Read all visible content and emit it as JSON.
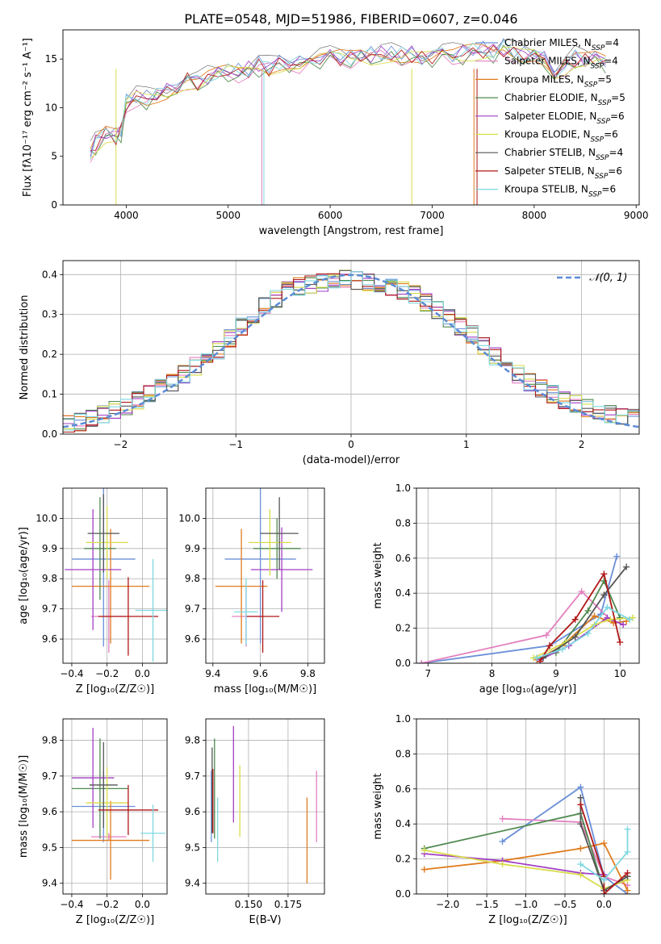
{
  "figure_title": "PLATE=0548, MJD=51986, FIBERID=0607, z=0.046",
  "series_names": [
    "Chabrier MILES",
    "Salpeter MILES",
    "Kroupa MILES",
    "Chabrier ELODIE",
    "Salpeter ELODIE",
    "Kroupa ELODIE",
    "Chabrier STELIB",
    "Salpeter STELIB",
    "Kroupa STELIB"
  ],
  "legend_nssp": [
    "4",
    "4",
    "5",
    "5",
    "6",
    "6",
    "4",
    "6",
    "6"
  ],
  "series_colors": [
    "#6a8fd8",
    "#e37fbf",
    "#e07b1d",
    "#4f8a4f",
    "#a23fc4",
    "#d8dc4a",
    "#555555",
    "#b01717",
    "#7fd8e0"
  ],
  "chart_data": [
    {
      "type": "line",
      "title": "PLATE=0548, MJD=51986, FIBERID=0607, z=0.046",
      "xlabel": "wavelength [Angstrom, rest frame]",
      "ylabel": "Flux [fλ10⁻¹⁷ erg cm⁻² s⁻¹ A⁻¹]",
      "xlim": [
        3380,
        9030
      ],
      "ylim": [
        0,
        18
      ],
      "xticks": [
        "4000",
        "5000",
        "6000",
        "7000",
        "8000",
        "9000"
      ],
      "yticks": [
        "0",
        "5",
        "10",
        "15"
      ],
      "legend": "upper-right",
      "x": [
        3650,
        3700,
        3800,
        3900,
        3950,
        4000,
        4100,
        4200,
        4300,
        4400,
        4500,
        4600,
        4700,
        4800,
        4900,
        5000,
        5100,
        5200,
        5300,
        5400,
        5500,
        5600,
        5700,
        5800,
        5900,
        6000,
        6100,
        6200,
        6300,
        6400,
        6500,
        6600,
        6700,
        6800,
        6900,
        7000,
        7100,
        7200,
        7300,
        7400,
        7500,
        7600,
        7700,
        7800,
        7900,
        8000,
        8100,
        8200,
        8300,
        8400,
        8500,
        8600,
        8700
      ],
      "y": [
        5.3,
        6.2,
        7.2,
        7.0,
        7.5,
        10.3,
        11.0,
        10.8,
        11.2,
        11.5,
        12.3,
        12.8,
        12.5,
        13.0,
        13.3,
        13.6,
        13.5,
        13.8,
        14.2,
        14.0,
        14.5,
        14.7,
        14.4,
        14.8,
        15.0,
        15.0,
        15.1,
        15.0,
        15.3,
        15.2,
        15.4,
        15.3,
        15.3,
        15.4,
        15.0,
        15.2,
        15.5,
        15.3,
        15.5,
        15.7,
        15.8,
        15.6,
        16.0,
        15.6,
        15.3,
        15.5,
        14.8,
        13.5,
        14.2,
        15.0,
        14.8,
        14.9,
        14.6
      ]
    },
    {
      "type": "bar",
      "xlabel": "(data-model)/error",
      "ylabel": "Normed distribution",
      "xlim": [
        -2.5,
        2.5
      ],
      "ylim": [
        0,
        0.435
      ],
      "xticks": [
        "−2",
        "−1",
        "0",
        "1",
        "2"
      ],
      "yticks": [
        "0.0",
        "0.1",
        "0.2",
        "0.3",
        "0.4"
      ],
      "legend": "upper-right",
      "reference_curve": "𝒩(0, 1)",
      "bin_width": 0.1,
      "hist_base": [
        0.025,
        0.03,
        0.04,
        0.05,
        0.06,
        0.07,
        0.085,
        0.1,
        0.115,
        0.13,
        0.15,
        0.17,
        0.19,
        0.21,
        0.24,
        0.27,
        0.3,
        0.32,
        0.34,
        0.36,
        0.37,
        0.375,
        0.38,
        0.385,
        0.39,
        0.385,
        0.38,
        0.375,
        0.37,
        0.36,
        0.35,
        0.33,
        0.31,
        0.29,
        0.27,
        0.25,
        0.22,
        0.195,
        0.17,
        0.15,
        0.13,
        0.115,
        0.1,
        0.085,
        0.075,
        0.065,
        0.06,
        0.05,
        0.045,
        0.04
      ]
    },
    {
      "type": "scatter",
      "xlabel": "Z [log₁₀(Z/Z☉)]",
      "ylabel": "age  [log₁₀(age/yr)]",
      "xlim": [
        -0.45,
        0.14
      ],
      "ylim": [
        9.52,
        10.1
      ],
      "xticks": [
        "−0.4",
        "−0.2",
        "0.0"
      ],
      "yticks": [
        "9.6",
        "9.7",
        "9.8",
        "9.9",
        "10.0"
      ],
      "points": [
        {
          "x": -0.22,
          "y": 9.865,
          "xerr": 0.18,
          "yerr": 0.29
        },
        {
          "x": -0.19,
          "y": 9.675,
          "xerr": 0.1,
          "yerr": 0.12
        },
        {
          "x": -0.18,
          "y": 9.775,
          "xerr": 0.22,
          "yerr": 0.19
        },
        {
          "x": -0.24,
          "y": 9.9,
          "xerr": 0.09,
          "yerr": 0.17
        },
        {
          "x": -0.28,
          "y": 9.83,
          "xerr": 0.16,
          "yerr": 0.2
        },
        {
          "x": -0.2,
          "y": 9.92,
          "xerr": 0.12,
          "yerr": 0.12
        },
        {
          "x": -0.22,
          "y": 9.95,
          "xerr": 0.09,
          "yerr": 0.13
        },
        {
          "x": -0.08,
          "y": 9.675,
          "xerr": 0.17,
          "yerr": 0.13
        },
        {
          "x": 0.06,
          "y": 9.695,
          "xerr": 0.1,
          "yerr": 0.17
        }
      ]
    },
    {
      "type": "scatter",
      "xlabel": "mass [log₁₀(M/M☉)]",
      "xlim": [
        9.37,
        9.87
      ],
      "ylim": [
        9.52,
        10.1
      ],
      "xticks": [
        "9.4",
        "9.6",
        "9.8"
      ],
      "yticks": [
        "9.6",
        "9.7",
        "9.8",
        "9.9",
        "10.0"
      ],
      "points": [
        {
          "x": 9.6,
          "y": 9.865,
          "xerr": 0.15,
          "yerr": 0.28
        },
        {
          "x": 9.54,
          "y": 9.675,
          "xerr": 0.06,
          "yerr": 0.1
        },
        {
          "x": 9.52,
          "y": 9.775,
          "xerr": 0.11,
          "yerr": 0.19
        },
        {
          "x": 9.67,
          "y": 9.9,
          "xerr": 0.1,
          "yerr": 0.1
        },
        {
          "x": 9.69,
          "y": 9.83,
          "xerr": 0.13,
          "yerr": 0.14
        },
        {
          "x": 9.64,
          "y": 9.92,
          "xerr": 0.09,
          "yerr": 0.11
        },
        {
          "x": 9.68,
          "y": 9.95,
          "xerr": 0.08,
          "yerr": 0.12
        },
        {
          "x": 9.61,
          "y": 9.675,
          "xerr": 0.07,
          "yerr": 0.12
        },
        {
          "x": 9.54,
          "y": 9.69,
          "xerr": 0.05,
          "yerr": 0.11
        }
      ]
    },
    {
      "type": "line",
      "xlabel": "age  [log₁₀(age/yr)]",
      "ylabel": "mass weight",
      "xlim": [
        6.82,
        10.3
      ],
      "ylim": [
        0,
        1.0
      ],
      "xticks": [
        "7",
        "8",
        "9",
        "10"
      ],
      "yticks": [
        "0.0",
        "0.2",
        "0.4",
        "0.6",
        "0.8",
        "1.0"
      ],
      "series_points": [
        {
          "x": [
            6.9,
            8.9,
            9.7,
            9.95
          ],
          "y": [
            0.0,
            0.1,
            0.28,
            0.61
          ]
        },
        {
          "x": [
            6.9,
            8.85,
            9.4,
            9.9
          ],
          "y": [
            0.0,
            0.16,
            0.41,
            0.23
          ]
        },
        {
          "x": [
            8.7,
            9.1,
            9.6,
            9.9,
            10.1
          ],
          "y": [
            0.02,
            0.1,
            0.27,
            0.23,
            0.24
          ]
        },
        {
          "x": [
            8.7,
            9.0,
            9.5,
            9.75,
            10.0
          ],
          "y": [
            0.03,
            0.06,
            0.3,
            0.47,
            0.26
          ]
        },
        {
          "x": [
            8.75,
            9.2,
            9.8,
            10.05
          ],
          "y": [
            0.02,
            0.1,
            0.26,
            0.22
          ]
        },
        {
          "x": [
            8.65,
            9.15,
            9.6,
            9.85,
            10.2
          ],
          "y": [
            0.03,
            0.12,
            0.22,
            0.25,
            0.26
          ]
        },
        {
          "x": [
            8.8,
            9.3,
            9.75,
            10.1
          ],
          "y": [
            0.03,
            0.15,
            0.39,
            0.55
          ]
        },
        {
          "x": [
            8.75,
            8.9,
            9.3,
            9.75,
            10.0
          ],
          "y": [
            0.01,
            0.1,
            0.25,
            0.51,
            0.12
          ]
        },
        {
          "x": [
            8.7,
            9.1,
            9.5,
            9.8,
            10.15
          ],
          "y": [
            0.03,
            0.08,
            0.17,
            0.32,
            0.25
          ]
        }
      ]
    },
    {
      "type": "scatter",
      "xlabel": "Z [log₁₀(Z/Z☉)]",
      "ylabel": "mass [log₁₀(M/M☉)]",
      "xlim": [
        -0.45,
        0.14
      ],
      "ylim": [
        9.37,
        9.86
      ],
      "xticks": [
        "−0.4",
        "−0.2",
        "0.0"
      ],
      "yticks": [
        "9.4",
        "9.5",
        "9.6",
        "9.7",
        "9.8"
      ],
      "points": [
        {
          "x": -0.22,
          "y": 9.615,
          "xerr": 0.18,
          "yerr": 0.1
        },
        {
          "x": -0.19,
          "y": 9.53,
          "xerr": 0.1,
          "yerr": 0.01
        },
        {
          "x": -0.18,
          "y": 9.52,
          "xerr": 0.22,
          "yerr": 0.11
        },
        {
          "x": -0.24,
          "y": 9.665,
          "xerr": 0.16,
          "yerr": 0.14
        },
        {
          "x": -0.28,
          "y": 9.695,
          "xerr": 0.12,
          "yerr": 0.14
        },
        {
          "x": -0.2,
          "y": 9.625,
          "xerr": 0.12,
          "yerr": 0.1
        },
        {
          "x": -0.22,
          "y": 9.675,
          "xerr": 0.08,
          "yerr": 0.12
        },
        {
          "x": -0.08,
          "y": 9.605,
          "xerr": 0.17,
          "yerr": 0.07
        },
        {
          "x": 0.06,
          "y": 9.54,
          "xerr": 0.07,
          "yerr": 0.08
        }
      ]
    },
    {
      "type": "scatter",
      "xlabel": "E(B-V)",
      "xlim": [
        0.123,
        0.198
      ],
      "ylim": [
        9.37,
        9.86
      ],
      "xticks": [
        "0.150",
        "0.175"
      ],
      "yticks": [
        "9.4",
        "9.5",
        "9.6",
        "9.7",
        "9.8"
      ],
      "points": [
        {
          "x": 0.1265,
          "y": 9.615,
          "yerr": 0.1
        },
        {
          "x": 0.193,
          "y": 9.615,
          "yerr": 0.1
        },
        {
          "x": 0.187,
          "y": 9.52,
          "yerr": 0.12
        },
        {
          "x": 0.1285,
          "y": 9.665,
          "yerr": 0.14
        },
        {
          "x": 0.1405,
          "y": 9.705,
          "yerr": 0.135
        },
        {
          "x": 0.1445,
          "y": 9.63,
          "yerr": 0.1
        },
        {
          "x": 0.127,
          "y": 9.66,
          "yerr": 0.12
        },
        {
          "x": 0.1275,
          "y": 9.63,
          "yerr": 0.09
        },
        {
          "x": 0.1305,
          "y": 9.55,
          "yerr": 0.09
        }
      ]
    },
    {
      "type": "line",
      "xlabel": "Z [log₁₀(Z/Z☉)]",
      "ylabel": "mass weight",
      "xlim": [
        -2.4,
        0.45
      ],
      "ylim": [
        0,
        1.0
      ],
      "xticks": [
        "−2.0",
        "−1.5",
        "−1.0",
        "−0.5",
        "0.0"
      ],
      "yticks": [
        "0.0",
        "0.2",
        "0.4",
        "0.6",
        "0.8",
        "1.0"
      ],
      "series_points": [
        {
          "x": [
            -1.3,
            -0.3,
            0.0,
            0.3
          ],
          "y": [
            0.3,
            0.61,
            0.1,
            0.0
          ]
        },
        {
          "x": [
            -1.3,
            -0.3,
            0.0,
            0.3
          ],
          "y": [
            0.43,
            0.41,
            0.1,
            0.05
          ]
        },
        {
          "x": [
            -2.3,
            -1.3,
            -0.3,
            0.0,
            0.3
          ],
          "y": [
            0.14,
            0.19,
            0.26,
            0.29,
            0.02
          ]
        },
        {
          "x": [
            -2.3,
            -0.3,
            0.0,
            0.3
          ],
          "y": [
            0.26,
            0.46,
            0.02,
            0.1
          ]
        },
        {
          "x": [
            -2.3,
            -1.3,
            -0.3,
            0.0
          ],
          "y": [
            0.23,
            0.19,
            0.12,
            0.11
          ]
        },
        {
          "x": [
            -2.3,
            -1.3,
            -0.3,
            0.0,
            0.3
          ],
          "y": [
            0.25,
            0.17,
            0.11,
            0.03,
            0.08
          ]
        },
        {
          "x": [
            -0.3,
            -0.3,
            0.0,
            0.3
          ],
          "y": [
            0.55,
            0.4,
            0.02,
            0.1
          ]
        },
        {
          "x": [
            -0.3,
            0.0,
            0.0,
            0.3
          ],
          "y": [
            0.51,
            0.1,
            0.0,
            0.12
          ]
        },
        {
          "x": [
            -0.3,
            0.0,
            0.3,
            0.3
          ],
          "y": [
            0.17,
            0.08,
            0.24,
            0.37
          ]
        }
      ]
    }
  ]
}
